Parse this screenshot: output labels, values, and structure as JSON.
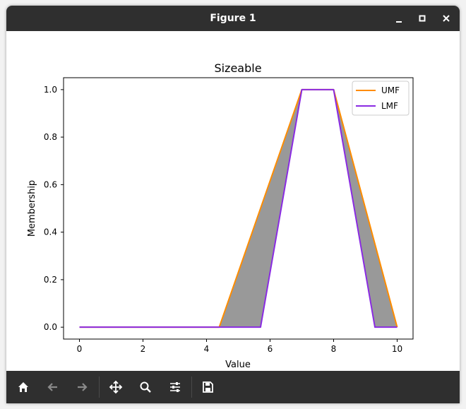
{
  "window": {
    "title": "Figure 1",
    "controls": [
      "minimize",
      "maximize",
      "close"
    ]
  },
  "toolbar": {
    "buttons": [
      {
        "name": "home",
        "icon": "home-icon"
      },
      {
        "name": "back",
        "icon": "arrow-left-icon"
      },
      {
        "name": "forward",
        "icon": "arrow-right-icon"
      },
      {
        "name": "pan",
        "icon": "move-icon"
      },
      {
        "name": "zoom",
        "icon": "search-icon"
      },
      {
        "name": "configure-subplots",
        "icon": "sliders-icon"
      },
      {
        "name": "save",
        "icon": "save-icon"
      }
    ]
  },
  "chart_data": {
    "type": "line",
    "title": "Sizeable",
    "xlabel": "Value",
    "ylabel": "Membership",
    "xlim": [
      -0.5,
      10.5
    ],
    "ylim": [
      -0.05,
      1.05
    ],
    "xticks": [
      0,
      2,
      4,
      6,
      8,
      10
    ],
    "yticks": [
      0.0,
      0.2,
      0.4,
      0.6,
      0.8,
      1.0
    ],
    "xtick_labels": [
      "0",
      "2",
      "4",
      "6",
      "8",
      "10"
    ],
    "ytick_labels": [
      "0.0",
      "0.2",
      "0.4",
      "0.6",
      "0.8",
      "1.0"
    ],
    "grid": false,
    "legend_position": "top-right",
    "fill_between": {
      "color": "#999999",
      "between": [
        "UMF",
        "LMF"
      ]
    },
    "series": [
      {
        "name": "UMF",
        "color": "#ff8c00",
        "x": [
          0,
          4.4,
          7,
          8,
          10
        ],
        "y": [
          0,
          0,
          1,
          1,
          0
        ]
      },
      {
        "name": "LMF",
        "color": "#8a2be2",
        "x": [
          0,
          5.7,
          7,
          8,
          9.3,
          10
        ],
        "y": [
          0,
          0,
          1,
          1,
          0,
          0
        ]
      }
    ]
  }
}
